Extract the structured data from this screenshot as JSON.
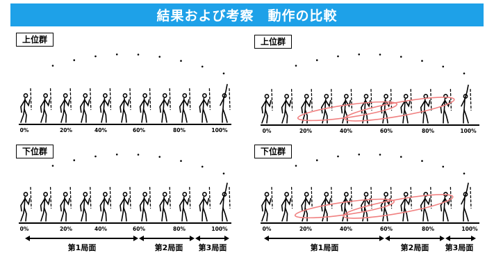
{
  "header": {
    "title": "結果および考察　動作の比較"
  },
  "panels": [
    {
      "id": "tl",
      "label": "上位群",
      "ellipses": false
    },
    {
      "id": "tr",
      "label": "上位群",
      "ellipses": true
    },
    {
      "id": "bl",
      "label": "下位群",
      "ellipses": false
    },
    {
      "id": "br",
      "label": "下位群",
      "ellipses": true
    }
  ],
  "percent_labels": [
    "0%",
    "20%",
    "40%",
    "60%",
    "80%",
    "100%"
  ],
  "phases": [
    "第1局面",
    "第2局面",
    "第3局面"
  ],
  "colors": {
    "title_bg": "#1ea1e8",
    "ellipse": "#f08080"
  }
}
